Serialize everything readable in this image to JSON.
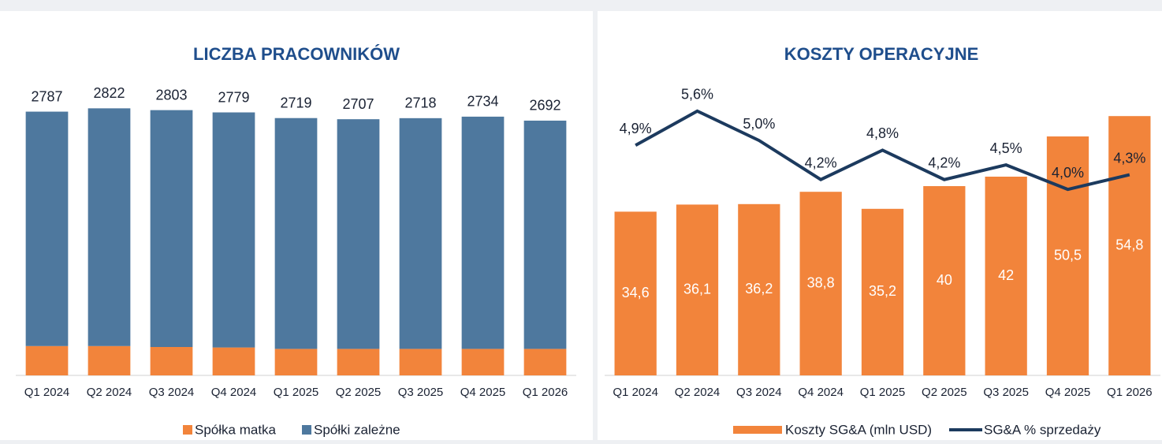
{
  "chart_data": [
    {
      "type": "stacked_bar",
      "title": "LICZBA PRACOWNIKÓW",
      "categories": [
        "Q1 2024",
        "Q2 2024",
        "Q3 2024",
        "Q4 2024",
        "Q1 2025",
        "Q2 2025",
        "Q3 2025",
        "Q4 2025",
        "Q1 2026"
      ],
      "series": [
        {
          "name": "Spółka matka",
          "color": "#f2843b",
          "values": [
            310,
            310,
            300,
            295,
            280,
            280,
            280,
            280,
            280
          ]
        },
        {
          "name": "Spółki zależne",
          "color": "#4e789e",
          "values": [
            2477,
            2512,
            2503,
            2484,
            2439,
            2427,
            2438,
            2454,
            2412
          ]
        }
      ],
      "totals": [
        2787,
        2822,
        2803,
        2779,
        2719,
        2707,
        2718,
        2734,
        2692
      ],
      "ylim": [
        0,
        3000
      ],
      "legend": "bottom"
    },
    {
      "type": "bar_line",
      "title": "KOSZTY OPERACYJNE",
      "categories": [
        "Q1 2024",
        "Q2 2024",
        "Q3 2024",
        "Q4 2024",
        "Q1 2025",
        "Q2 2025",
        "Q3 2025",
        "Q4 2025",
        "Q1 2026"
      ],
      "series": [
        {
          "name": "Koszty SG&A (mln USD)",
          "color": "#f2843b",
          "values": [
            34.6,
            36.1,
            36.2,
            38.8,
            35.2,
            40,
            42,
            50.5,
            54.8
          ],
          "value_labels": [
            "34,6",
            "36,1",
            "36,2",
            "38,8",
            "35,2",
            "40",
            "42",
            "50,5",
            "54,8"
          ]
        },
        {
          "name": "SG&A % sprzedaży",
          "color": "#1c3a5e",
          "axis": "y2",
          "values": [
            4.9,
            5.6,
            5.0,
            4.2,
            4.8,
            4.2,
            4.5,
            4.0,
            4.3
          ],
          "value_labels": [
            "4,9%",
            "5,6%",
            "5,0%",
            "4,2%",
            "4,8%",
            "4,2%",
            "4,5%",
            "4,0%",
            "4,3%"
          ]
        }
      ],
      "ylim": [
        0,
        60
      ],
      "y2lim": [
        0.2,
        6
      ],
      "legend": "bottom"
    }
  ]
}
